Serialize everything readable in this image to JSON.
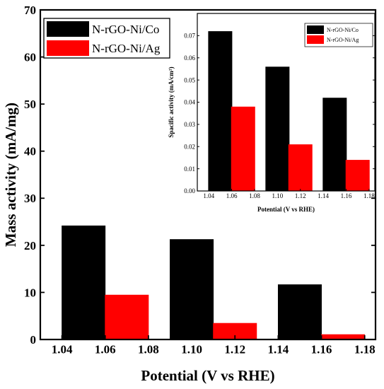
{
  "chart_data": [
    {
      "type": "bar",
      "title": "",
      "xlabel": "Potential (V vs RHE)",
      "ylabel": "Mass activity (mA/mg)",
      "x_ticks": [
        "1.04",
        "1.06",
        "1.08",
        "1.10",
        "1.12",
        "1.14",
        "1.16",
        "1.18"
      ],
      "y_ticks": [
        "0",
        "10",
        "20",
        "30",
        "40",
        "50",
        "60",
        "70"
      ],
      "xlim": [
        1.03,
        1.185
      ],
      "ylim": [
        0,
        70
      ],
      "legend_position": "top-left",
      "grid": false,
      "series": [
        {
          "name": "N-rGO-Ni/Co",
          "color": "#000000",
          "x": [
            1.05,
            1.1,
            1.15
          ],
          "values": [
            24.2,
            21.3,
            11.7
          ]
        },
        {
          "name": "N-rGO-Ni/Ag",
          "color": "#ff0000",
          "x": [
            1.07,
            1.12,
            1.17
          ],
          "values": [
            9.5,
            3.5,
            1.1
          ]
        }
      ]
    },
    {
      "type": "bar",
      "title": "",
      "xlabel": "Potential (V vs RHE)",
      "ylabel": "Spacific activity (mA/cm²)",
      "x_ticks": [
        "1.04",
        "1.06",
        "1.08",
        "1.10",
        "1.12",
        "1.14",
        "1.16",
        "1.18"
      ],
      "y_ticks": [
        "0.00",
        "0.01",
        "0.02",
        "0.03",
        "0.04",
        "0.05",
        "0.06",
        "0.07"
      ],
      "xlim": [
        1.03,
        1.185
      ],
      "ylim": [
        0,
        0.08
      ],
      "legend_position": "top-right",
      "grid": false,
      "series": [
        {
          "name": "N-rGO-Ni/Co",
          "color": "#000000",
          "x": [
            1.05,
            1.1,
            1.15
          ],
          "values": [
            0.072,
            0.056,
            0.042
          ]
        },
        {
          "name": "N-rGO-Ni/Ag",
          "color": "#ff0000",
          "x": [
            1.07,
            1.12,
            1.17
          ],
          "values": [
            0.038,
            0.021,
            0.014
          ]
        }
      ]
    }
  ]
}
